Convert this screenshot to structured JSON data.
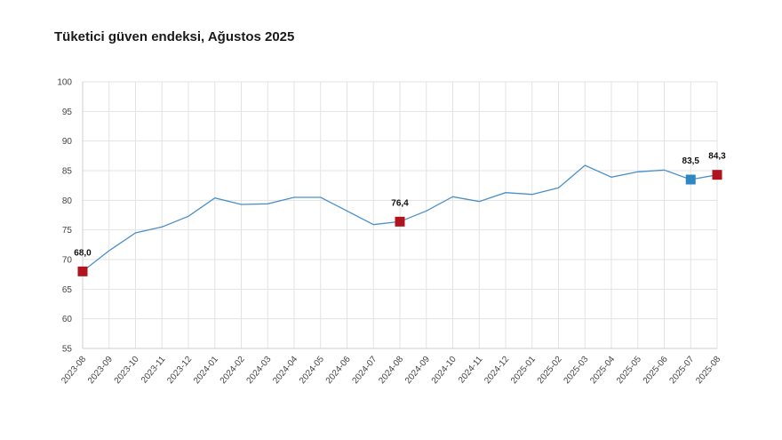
{
  "chart_data": {
    "type": "line",
    "title": "Tüketici güven endeksi, Ağustos 2025",
    "xlabel": "",
    "ylabel": "",
    "ylim": [
      55,
      100
    ],
    "yticks": [
      55,
      60,
      65,
      70,
      75,
      80,
      85,
      90,
      95,
      100
    ],
    "grid": true,
    "categories": [
      "2023-08",
      "2023-09",
      "2023-10",
      "2023-11",
      "2023-12",
      "2024-01",
      "2024-02",
      "2024-03",
      "2024-04",
      "2024-05",
      "2024-06",
      "2024-07",
      "2024-08",
      "2024-09",
      "2024-10",
      "2024-11",
      "2024-12",
      "2025-01",
      "2025-02",
      "2025-03",
      "2025-04",
      "2025-05",
      "2025-06",
      "2025-07",
      "2025-08"
    ],
    "series": [
      {
        "values": [
          68.0,
          71.5,
          74.5,
          75.5,
          77.3,
          80.4,
          79.3,
          79.4,
          80.5,
          80.5,
          78.2,
          75.9,
          76.4,
          78.2,
          80.6,
          79.8,
          81.3,
          81.0,
          82.1,
          85.9,
          83.9,
          84.8,
          85.1,
          83.5,
          84.3
        ],
        "color": "#4a90c8"
      }
    ],
    "highlighted_points": [
      {
        "index": 0,
        "label": "68,0",
        "color": "#b0141e"
      },
      {
        "index": 12,
        "label": "76,4",
        "color": "#b0141e"
      },
      {
        "index": 23,
        "label": "83,5",
        "color": "#2f86c4"
      },
      {
        "index": 24,
        "label": "84,3",
        "color": "#b0141e"
      }
    ]
  }
}
